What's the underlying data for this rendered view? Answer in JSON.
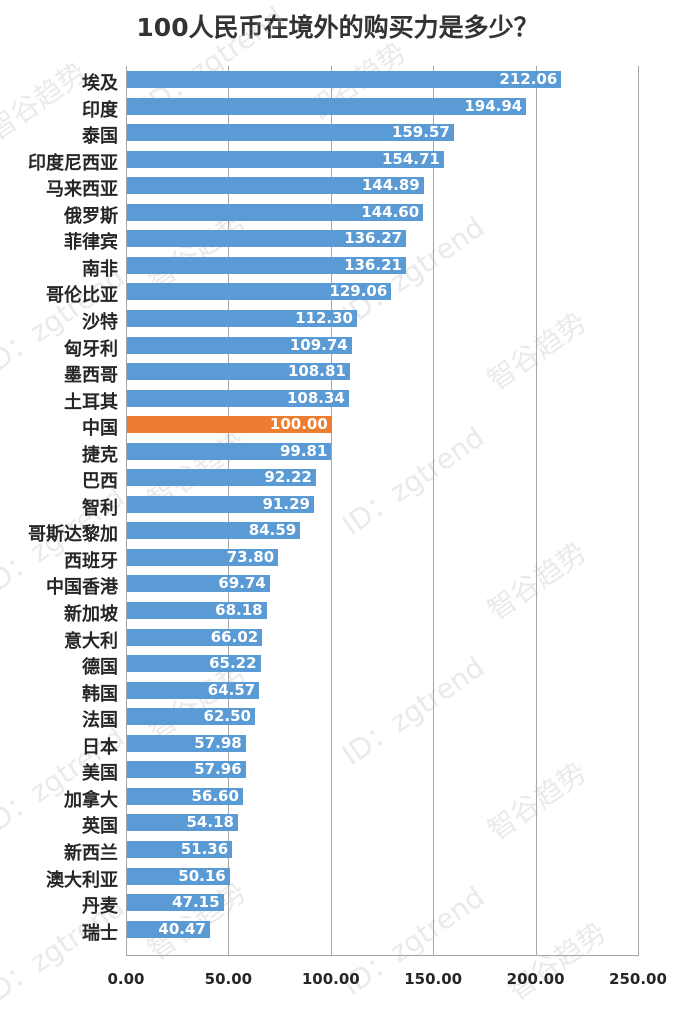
{
  "title": "100人民币在境外的购买力是多少？",
  "watermark": {
    "cn": "智谷趋势",
    "id": "ID：zgtrend"
  },
  "colors": {
    "bar": "#5b9bd5",
    "highlight": "#ed7d31",
    "grid": "#a6a6a6",
    "text": "#262626"
  },
  "chart_data": {
    "type": "bar",
    "orientation": "horizontal",
    "title": "100人民币在境外的购买力是多少？",
    "xlabel": "",
    "ylabel": "",
    "xlim": [
      0,
      250
    ],
    "xticks": [
      "0.00",
      "50.00",
      "100.00",
      "150.00",
      "200.00",
      "250.00"
    ],
    "grid": true,
    "legend": null,
    "highlight_category": "中国",
    "categories": [
      "埃及",
      "印度",
      "泰国",
      "印度尼西亚",
      "马来西亚",
      "俄罗斯",
      "菲律宾",
      "南非",
      "哥伦比亚",
      "沙特",
      "匈牙利",
      "墨西哥",
      "土耳其",
      "中国",
      "捷克",
      "巴西",
      "智利",
      "哥斯达黎加",
      "西班牙",
      "中国香港",
      "新加坡",
      "意大利",
      "德国",
      "韩国",
      "法国",
      "日本",
      "美国",
      "加拿大",
      "英国",
      "新西兰",
      "澳大利亚",
      "丹麦",
      "瑞士"
    ],
    "values": [
      212.06,
      194.94,
      159.57,
      154.71,
      144.89,
      144.6,
      136.27,
      136.21,
      129.06,
      112.3,
      109.74,
      108.81,
      108.34,
      100.0,
      99.81,
      92.22,
      91.29,
      84.59,
      73.8,
      69.74,
      68.18,
      66.02,
      65.22,
      64.57,
      62.5,
      57.98,
      57.96,
      56.6,
      54.18,
      51.36,
      50.16,
      47.15,
      40.47
    ],
    "labels": [
      "212.06",
      "194.94",
      "159.57",
      "154.71",
      "144.89",
      "144.60",
      "136.27",
      "136.21",
      "129.06",
      "112.30",
      "109.74",
      "108.81",
      "108.34",
      "100.00",
      "99.81",
      "92.22",
      "91.29",
      "84.59",
      "73.80",
      "69.74",
      "68.18",
      "66.02",
      "65.22",
      "64.57",
      "62.50",
      "57.98",
      "57.96",
      "56.60",
      "54.18",
      "51.36",
      "50.16",
      "47.15",
      "40.47"
    ]
  }
}
